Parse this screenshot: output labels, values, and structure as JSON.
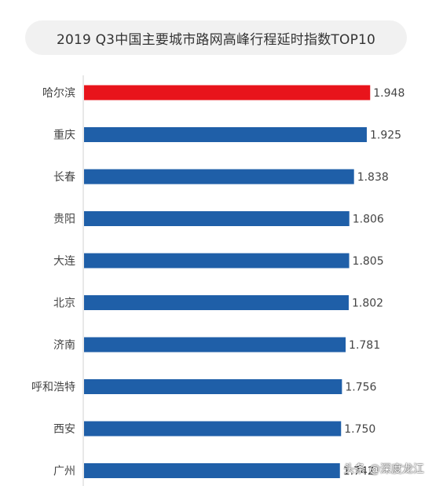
{
  "chart_data": {
    "type": "bar",
    "orientation": "horizontal",
    "title": "2019 Q3中国主要城市路网高峰行程延时指数TOP10",
    "categories": [
      "哈尔滨",
      "重庆",
      "长春",
      "贵阳",
      "大连",
      "北京",
      "济南",
      "呼和浩特",
      "西安",
      "广州"
    ],
    "values": [
      1.948,
      1.925,
      1.838,
      1.806,
      1.805,
      1.802,
      1.781,
      1.756,
      1.75,
      1.742
    ],
    "value_labels": [
      "1.948",
      "1.925",
      "1.838",
      "1.806",
      "1.805",
      "1.802",
      "1.781",
      "1.756",
      "1.750",
      "1.742"
    ],
    "highlight_index": 0,
    "colors": {
      "highlight": "#e8141b",
      "default": "#1f5fa8",
      "axis": "#d0d0d0"
    },
    "xlim": [
      0,
      2.2
    ],
    "grid": false,
    "legend": "none"
  },
  "watermark": {
    "text": "头条 @深度龙江"
  }
}
